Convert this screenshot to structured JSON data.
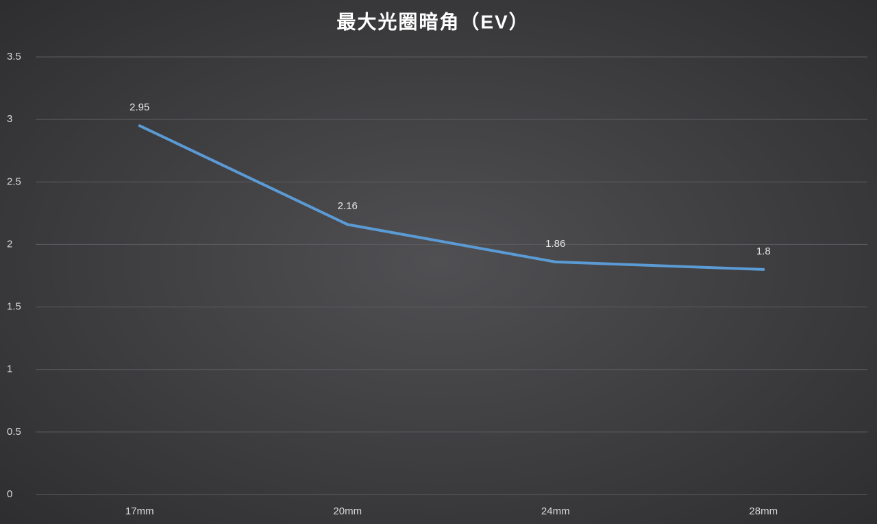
{
  "chart_data": {
    "type": "line",
    "title": "最大光圈暗角（EV）",
    "categories": [
      "17mm",
      "20mm",
      "24mm",
      "28mm"
    ],
    "series": [
      {
        "name": null,
        "color": "#5b9bd5",
        "values": [
          2.95,
          2.16,
          1.86,
          1.8
        ]
      }
    ],
    "ylim": [
      0,
      3.5
    ],
    "yticks": [
      0,
      0.5,
      1,
      1.5,
      2,
      2.5,
      3,
      3.5
    ],
    "grid": true
  }
}
